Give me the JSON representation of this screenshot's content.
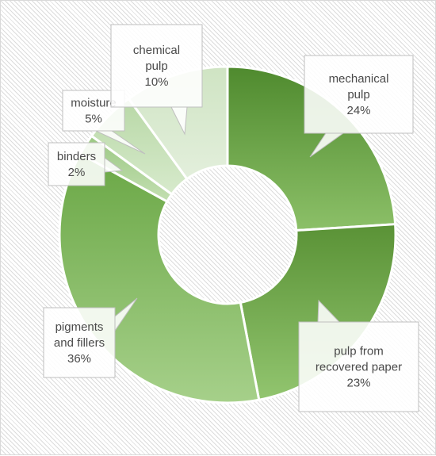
{
  "chart_data": {
    "type": "doughnut",
    "title": "",
    "segments": [
      {
        "label": "mechanical\npulp",
        "value": 24,
        "display": "24%",
        "color_top": "#4f8a2e",
        "color_bottom": "#8cc068"
      },
      {
        "label": "pulp from\nrecovered paper",
        "value": 23,
        "display": "23%",
        "color_top": "#5a9236",
        "color_bottom": "#92c56f"
      },
      {
        "label": "pigments\nand fillers",
        "value": 36,
        "display": "36%",
        "color_top": "#6aa745",
        "color_bottom": "#a6d08a"
      },
      {
        "label": "binders",
        "value": 2,
        "display": "2%",
        "color_top": "#9bc883",
        "color_bottom": "#c3dfb1"
      },
      {
        "label": "moisture",
        "value": 5,
        "display": "5%",
        "color_top": "#b8d8a6",
        "color_bottom": "#d7eacc"
      },
      {
        "label": "chemical\npulp",
        "value": 10,
        "display": "10%",
        "color_top": "#cfe4c3",
        "color_bottom": "#e3efdc"
      }
    ],
    "start_angle_deg": 0,
    "legend": "none",
    "data_labels": "callouts"
  }
}
